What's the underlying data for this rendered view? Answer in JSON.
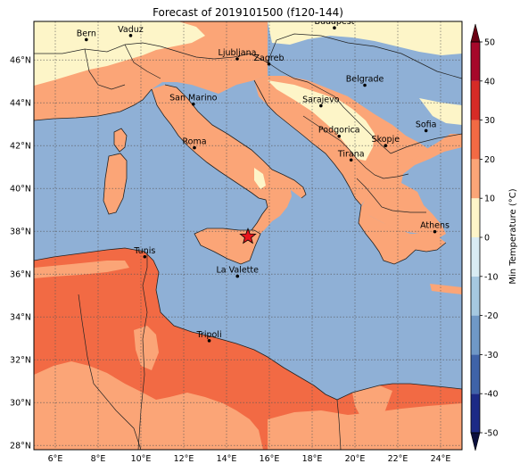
{
  "title": "Forecast of 2019101500 (f120-144)",
  "map": {
    "lon_range": [
      5,
      25
    ],
    "lat_range": [
      27.8,
      47.8
    ],
    "lon_ticks": [
      {
        "value": 6,
        "label": "6°E"
      },
      {
        "value": 8,
        "label": "8°E"
      },
      {
        "value": 10,
        "label": "10°E"
      },
      {
        "value": 12,
        "label": "12°E"
      },
      {
        "value": 14,
        "label": "14°E"
      },
      {
        "value": 16,
        "label": "16°E"
      },
      {
        "value": 18,
        "label": "18°E"
      },
      {
        "value": 20,
        "label": "20°E"
      },
      {
        "value": 22,
        "label": "22°E"
      },
      {
        "value": 24,
        "label": "24°E"
      }
    ],
    "lat_ticks": [
      {
        "value": 28,
        "label": "28°N"
      },
      {
        "value": 30,
        "label": "30°N"
      },
      {
        "value": 32,
        "label": "32°N"
      },
      {
        "value": 34,
        "label": "34°N"
      },
      {
        "value": 36,
        "label": "36°N"
      },
      {
        "value": 38,
        "label": "38°N"
      },
      {
        "value": 40,
        "label": "40°N"
      },
      {
        "value": 42,
        "label": "42°N"
      },
      {
        "value": 44,
        "label": "44°N"
      },
      {
        "value": 46,
        "label": "46°N"
      }
    ],
    "grid": true,
    "colors": {
      "sea": "#8fb0d6",
      "land_10_20": "#fba577",
      "land_20_30": "#f26a44",
      "land_0_10": "#fdf5c8",
      "border": "#222222"
    },
    "cities": [
      {
        "name": "Bern",
        "lon": 7.45,
        "lat": 46.95
      },
      {
        "name": "Vaduz",
        "lon": 9.52,
        "lat": 47.14
      },
      {
        "name": "Ljubljana",
        "lon": 14.5,
        "lat": 46.05
      },
      {
        "name": "Zagreb",
        "lon": 15.98,
        "lat": 45.81
      },
      {
        "name": "Budapest",
        "lon": 19.04,
        "lat": 47.5
      },
      {
        "name": "San Marino",
        "lon": 12.45,
        "lat": 43.94
      },
      {
        "name": "Belgrade",
        "lon": 20.46,
        "lat": 44.82
      },
      {
        "name": "Sarajevo",
        "lon": 18.41,
        "lat": 43.86
      },
      {
        "name": "Roma",
        "lon": 12.5,
        "lat": 41.9
      },
      {
        "name": "Podgorica",
        "lon": 19.26,
        "lat": 42.44
      },
      {
        "name": "Sofia",
        "lon": 23.32,
        "lat": 42.7
      },
      {
        "name": "Skopje",
        "lon": 21.43,
        "lat": 42.0
      },
      {
        "name": "Tirana",
        "lon": 19.82,
        "lat": 41.33
      },
      {
        "name": "Athens",
        "lon": 23.73,
        "lat": 37.98
      },
      {
        "name": "Tunis",
        "lon": 10.18,
        "lat": 36.81
      },
      {
        "name": "La Valette",
        "lon": 14.51,
        "lat": 35.9
      },
      {
        "name": "Tripoli",
        "lon": 13.19,
        "lat": 32.89
      }
    ],
    "marker": {
      "lon": 15.0,
      "lat": 37.75,
      "color": "#e8141c"
    }
  },
  "colorbar": {
    "label": "Min Temperature (°C)",
    "ticks": [
      "-50",
      "-40",
      "-30",
      "-20",
      "-10",
      "0",
      "10",
      "20",
      "30",
      "40",
      "50"
    ],
    "bands": [
      {
        "from": -50,
        "to": -40,
        "color": "#1c2a86"
      },
      {
        "from": -40,
        "to": -30,
        "color": "#3f63a8"
      },
      {
        "from": -30,
        "to": -20,
        "color": "#6f98c6"
      },
      {
        "from": -20,
        "to": -10,
        "color": "#a5c8e0"
      },
      {
        "from": -10,
        "to": 0,
        "color": "#d9ecf3"
      },
      {
        "from": 0,
        "to": 10,
        "color": "#fdf5c8"
      },
      {
        "from": 10,
        "to": 20,
        "color": "#fba577"
      },
      {
        "from": 20,
        "to": 30,
        "color": "#f26a44"
      },
      {
        "from": 30,
        "to": 40,
        "color": "#d62b26"
      },
      {
        "from": 40,
        "to": 50,
        "color": "#a6082a"
      }
    ],
    "under_color": "#0b0f3d",
    "over_color": "#6a0013"
  }
}
